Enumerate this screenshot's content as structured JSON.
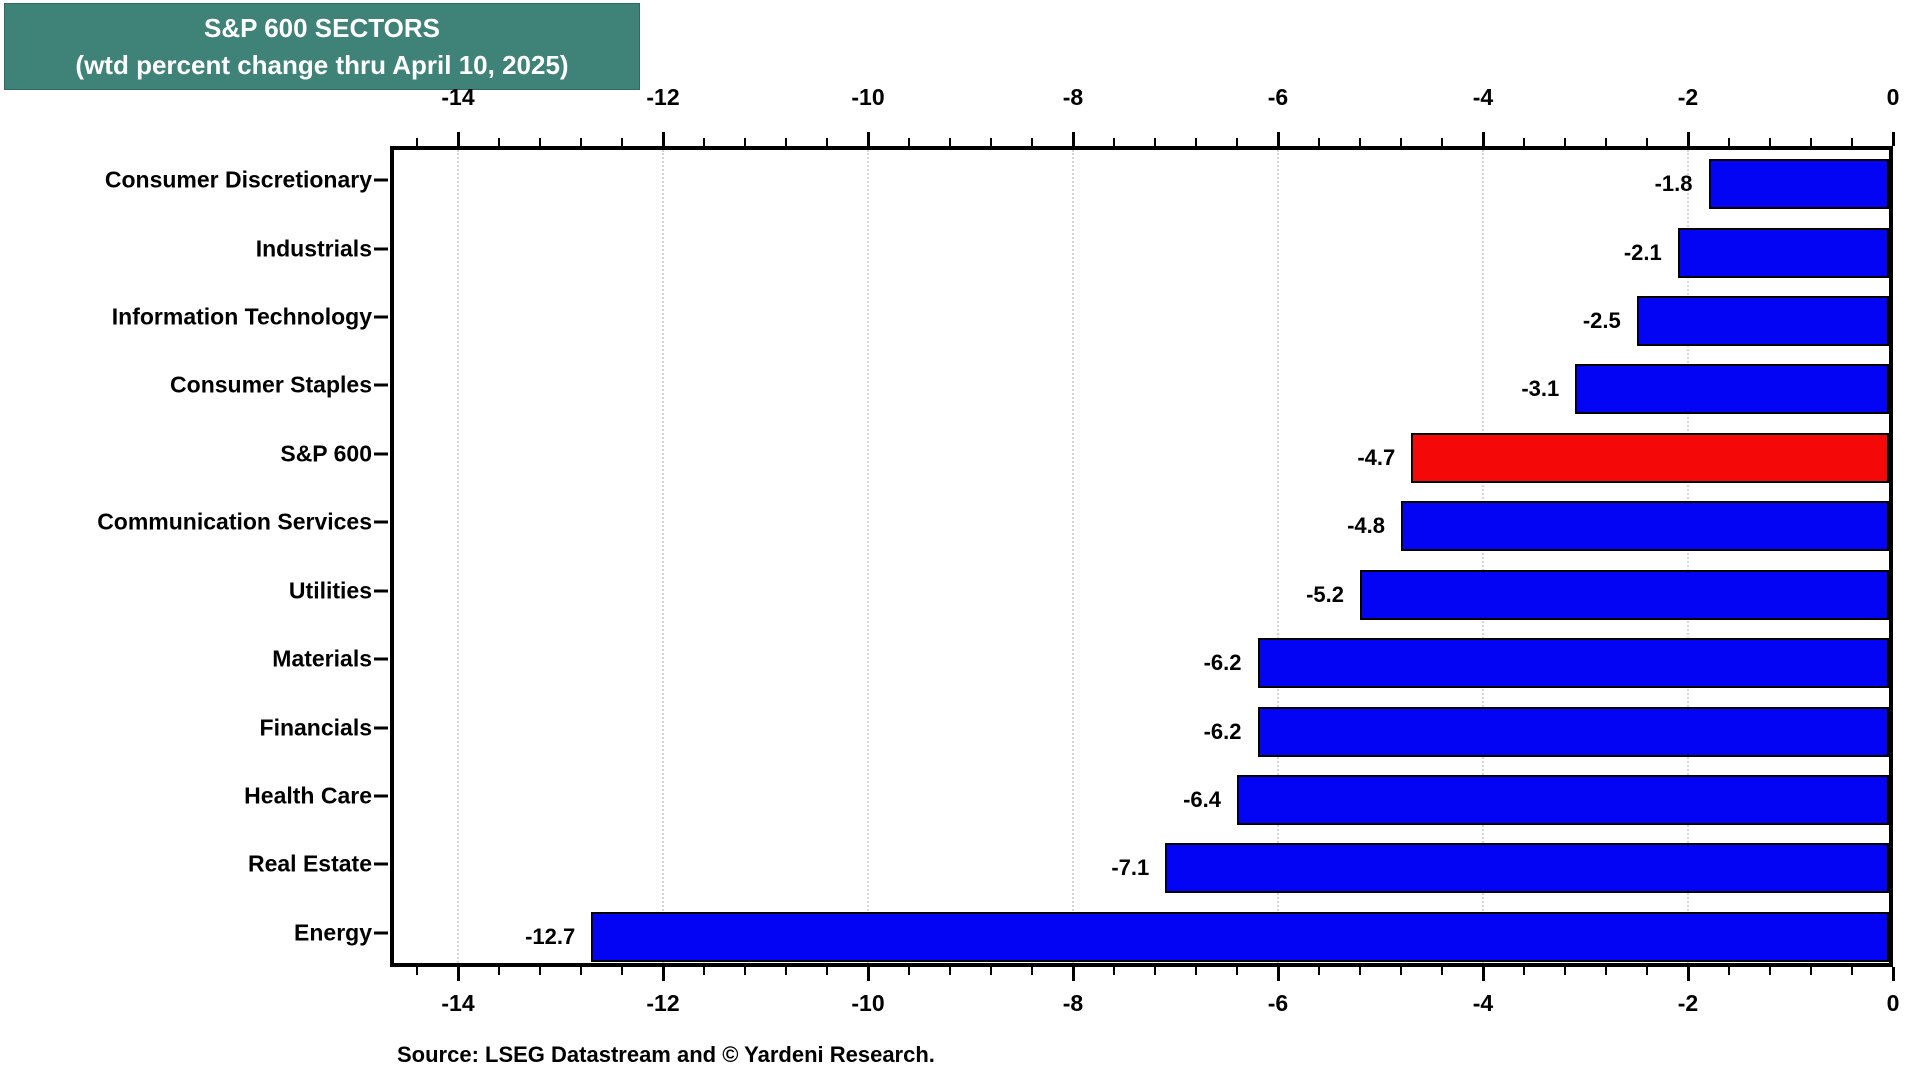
{
  "title": {
    "line1": "S&P 600 SECTORS",
    "line2": "(wtd percent change thru April 10, 2025)"
  },
  "source": "Source: LSEG Datastream and © Yardeni Research.",
  "colors": {
    "title_background": "#3E8278",
    "bar_blue": "#0404F4",
    "bar_highlight_red": "#F50808",
    "frame": "#000000",
    "gridline": "#D6D6D6"
  },
  "chart_data": {
    "type": "bar",
    "orientation": "horizontal",
    "title": "S&P 600 SECTORS (wtd percent change thru April 10, 2025)",
    "categories": [
      "Consumer Discretionary",
      "Industrials",
      "Information Technology",
      "Consumer Staples",
      "S&P 600",
      "Communication Services",
      "Utilities",
      "Materials",
      "Financials",
      "Health Care",
      "Real Estate",
      "Energy"
    ],
    "values": [
      -1.8,
      -2.1,
      -2.5,
      -3.1,
      -4.7,
      -4.8,
      -5.2,
      -6.2,
      -6.2,
      -6.4,
      -7.1,
      -12.7
    ],
    "value_labels": [
      "-1.8",
      "-2.1",
      "-2.5",
      "-3.1",
      "-4.7",
      "-4.8",
      "-5.2",
      "-6.2",
      "-6.2",
      "-6.4",
      "-7.1",
      "-12.7"
    ],
    "highlight_category": "S&P 600",
    "highlight_index": 4,
    "xlim": [
      -14.66,
      0
    ],
    "x_major_ticks": [
      -14,
      -12,
      -10,
      -8,
      -6,
      -4,
      -2,
      0
    ],
    "x_major_tick_labels": [
      "-14",
      "-12",
      "-10",
      "-8",
      "-6",
      "-4",
      "-2",
      "0"
    ],
    "x_minor_tick_step": 0.4,
    "grid": "vertical dotted gridlines at major ticks",
    "axes": "tick labels drawn on both top and bottom edges, ticks point outward",
    "legend": "none"
  }
}
